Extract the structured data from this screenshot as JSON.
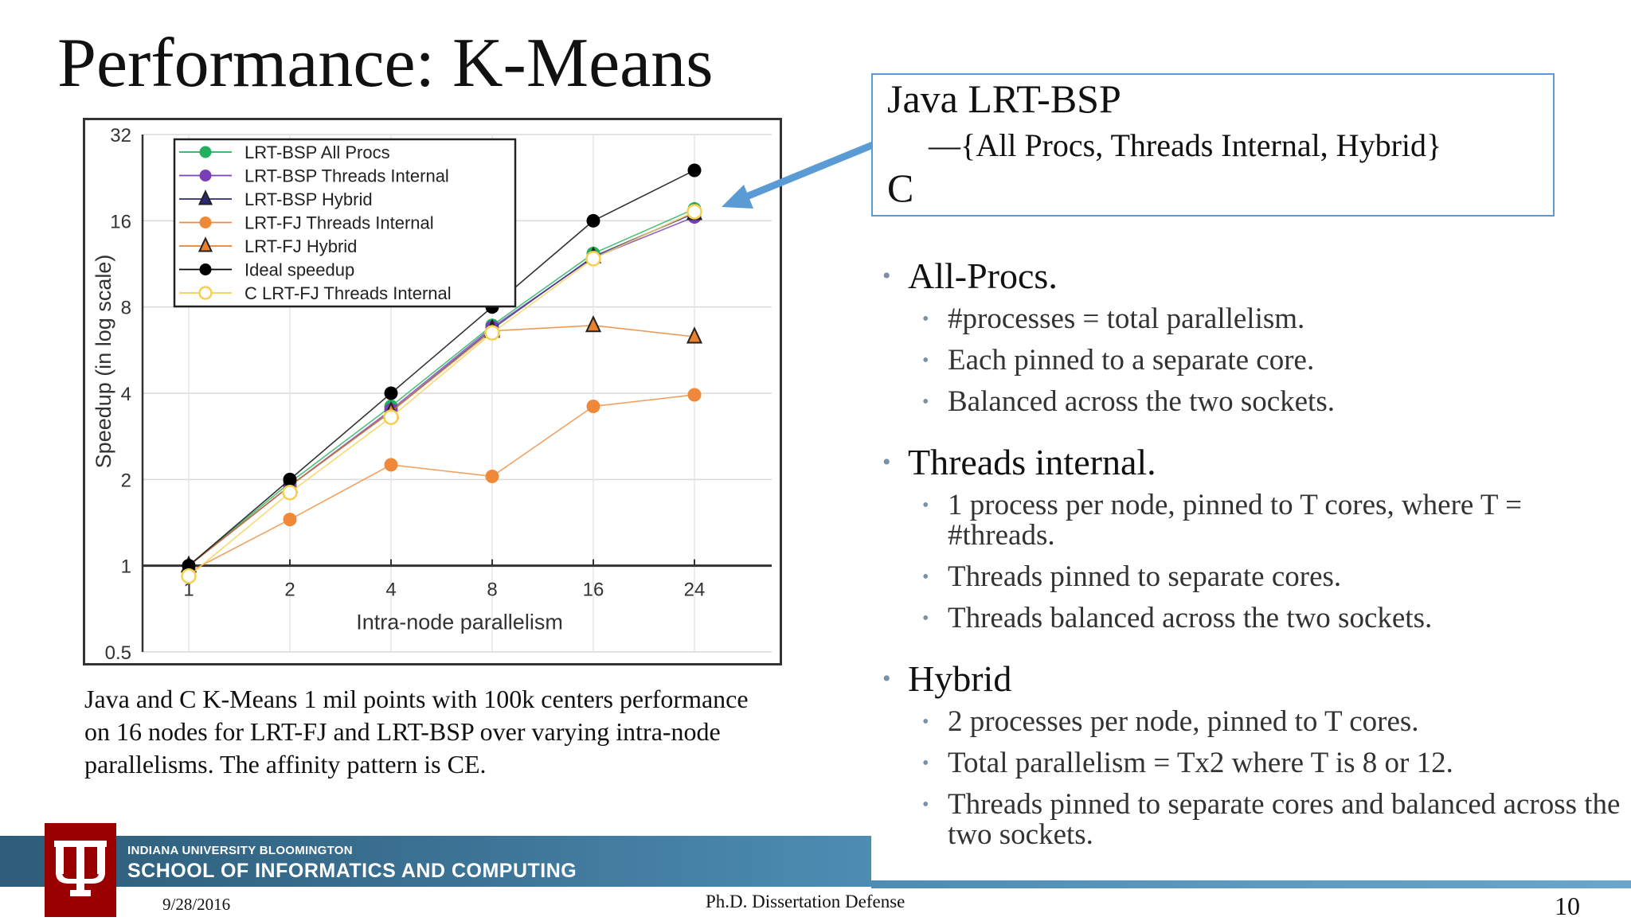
{
  "slide": {
    "title": "Performance: K-Means",
    "caption": "Java and C K-Means 1 mil points with 100k centers performance on 16 nodes for LRT-FJ and LRT-BSP over varying intra-node parallelisms. The affinity pattern is CE."
  },
  "callout": {
    "title": "Java LRT-BSP",
    "subtitle": "―{All Procs, Threads Internal,  Hybrid}",
    "c_label": "C",
    "border_color": "#5b9bd5"
  },
  "bullets": [
    {
      "text": "All-Procs.",
      "sub": [
        "#processes = total parallelism.",
        "Each pinned to a separate core.",
        "Balanced across the two sockets."
      ]
    },
    {
      "text": "Threads internal.",
      "sub": [
        "1 process per node, pinned to T cores, where T = #threads.",
        "Threads pinned to separate cores.",
        "Threads balanced across the two sockets."
      ]
    },
    {
      "text": "Hybrid",
      "sub": [
        "2 processes per node, pinned to T cores.",
        "Total parallelism = Tx2  where T is 8 or 12.",
        "Threads pinned to separate cores and balanced across the two sockets."
      ]
    }
  ],
  "footer": {
    "org": "INDIANA UNIVERSITY BLOOMINGTON",
    "school": "SCHOOL OF INFORMATICS AND COMPUTING",
    "date": "9/28/2016",
    "center": "Ph.D. Dissertation Defense",
    "page": "10",
    "logo_color": "#990000",
    "band_color": "#3b7193"
  },
  "chart_data": {
    "type": "line",
    "xlabel": "Intra-node parallelism",
    "ylabel": "Speedup (in log scale)",
    "x": [
      1,
      2,
      4,
      8,
      16,
      24
    ],
    "x_tick_labels": [
      "1",
      "2",
      "4",
      "8",
      "16",
      "24"
    ],
    "y_scale": "log2",
    "y_ticks": [
      0.5,
      1,
      2,
      4,
      8,
      16,
      32
    ],
    "y_tick_labels": [
      "0.5",
      "1",
      "2",
      "4",
      "8",
      "16",
      "32"
    ],
    "ylim": [
      0.5,
      32
    ],
    "legend_position": "top-left",
    "series": [
      {
        "name": "LRT-BSP All Procs",
        "marker": "circle",
        "color": "#22b05e",
        "values": [
          1.0,
          1.95,
          3.6,
          6.9,
          12.3,
          17.6
        ]
      },
      {
        "name": "LRT-BSP Threads Internal",
        "marker": "circle",
        "color": "#7b3fb5",
        "values": [
          1.0,
          1.9,
          3.5,
          6.8,
          11.9,
          16.5
        ]
      },
      {
        "name": "LRT-BSP Hybrid",
        "marker": "triangle",
        "color": "#2a2a72",
        "values": [
          1.0,
          1.9,
          3.45,
          6.7,
          12.0,
          17.0
        ]
      },
      {
        "name": "LRT-FJ Threads Internal",
        "marker": "circle",
        "color": "#f0883a",
        "values": [
          0.95,
          1.45,
          2.25,
          2.05,
          3.6,
          3.95
        ]
      },
      {
        "name": "LRT-FJ Hybrid",
        "marker": "triangle",
        "color": "#e8802c",
        "values": [
          1.0,
          1.9,
          3.45,
          6.6,
          6.9,
          6.3
        ]
      },
      {
        "name": "Ideal speedup",
        "marker": "circle",
        "color": "#000000",
        "values": [
          1,
          2,
          4,
          8,
          16,
          24
        ]
      },
      {
        "name": "C LRT-FJ Threads Internal",
        "marker": "ring",
        "color": "#f5d050",
        "values": [
          0.92,
          1.8,
          3.3,
          6.5,
          11.8,
          17.2
        ]
      }
    ]
  }
}
